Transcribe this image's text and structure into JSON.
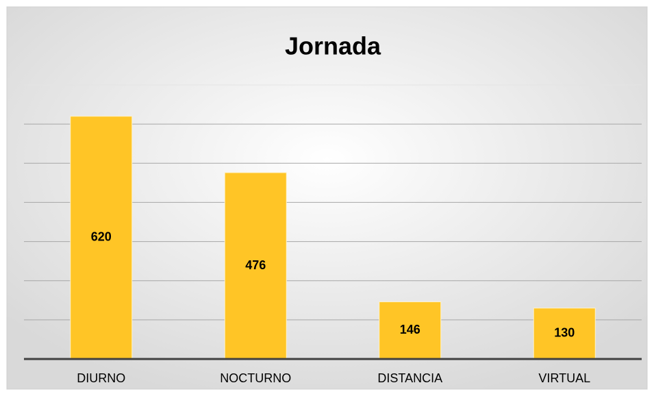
{
  "chart_data": {
    "type": "bar",
    "title": "Jornada",
    "categories": [
      "DIURNO",
      "NOCTURNO",
      "DISTANCIA",
      "VIRTUAL"
    ],
    "values": [
      620,
      476,
      146,
      130
    ],
    "color": "#ffc526",
    "ylim": [
      0,
      700
    ],
    "yticks": [
      0,
      100,
      200,
      300,
      400,
      500,
      600,
      700
    ],
    "grid": true
  }
}
